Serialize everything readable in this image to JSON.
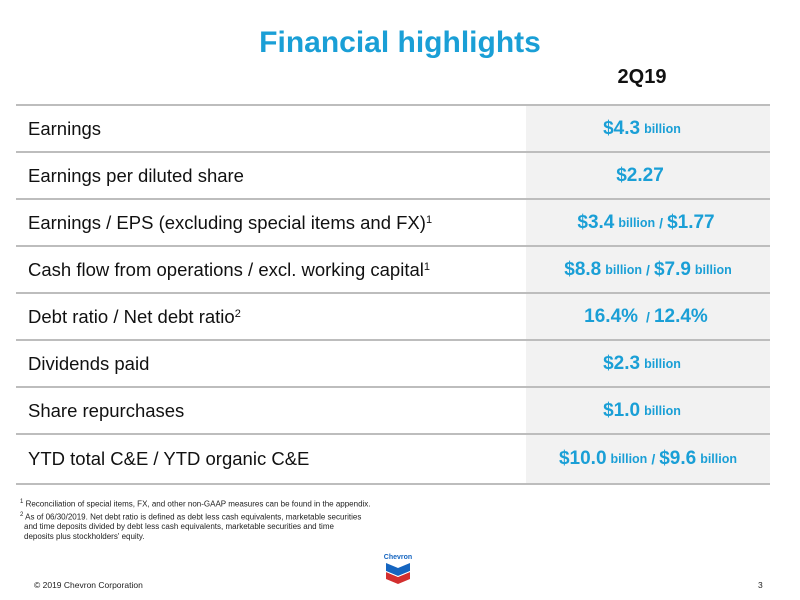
{
  "title": "Financial highlights",
  "period": "2Q19",
  "rows": [
    {
      "label": "Earnings",
      "sup": "",
      "v1": "$4.3",
      "u1": "billion",
      "sep": "",
      "v2": "",
      "u2": ""
    },
    {
      "label": "Earnings per diluted share",
      "sup": "",
      "v1": "$2.27",
      "u1": "",
      "sep": "",
      "v2": "",
      "u2": ""
    },
    {
      "label": "Earnings / EPS (excluding special items and FX)",
      "sup": "1",
      "v1": "$3.4",
      "u1": "billion",
      "sep": "/",
      "v2": "$1.77",
      "u2": ""
    },
    {
      "label": "Cash flow from operations / excl. working capital",
      "sup": "1",
      "v1": "$8.8",
      "u1": "billion",
      "sep": "/",
      "v2": "$7.9",
      "u2": "billion"
    },
    {
      "label": "Debt ratio / Net debt ratio",
      "sup": "2",
      "v1": "16.4%",
      "u1": "",
      "sep": "/",
      "v2": "12.4%",
      "u2": ""
    },
    {
      "label": "Dividends paid",
      "sup": "",
      "v1": "$2.3",
      "u1": "billion",
      "sep": "",
      "v2": "",
      "u2": ""
    },
    {
      "label": "Share repurchases",
      "sup": "",
      "v1": "$1.0",
      "u1": "billion",
      "sep": "",
      "v2": "",
      "u2": ""
    },
    {
      "label": "YTD total C&E / YTD organic C&E",
      "sup": "",
      "v1": "$10.0",
      "u1": "billion",
      "sep": "/",
      "v2": "$9.6",
      "u2": "billion"
    }
  ],
  "footnotes": {
    "fn1_mark": "1",
    "fn1_text": "Reconciliation of special items, FX, and other non-GAAP measures can be found in the appendix.",
    "fn2_mark": "2",
    "fn2_line1": "As of 06/30/2019.  Net debt ratio is defined as debt less cash equivalents, marketable securities",
    "fn2_line2": "and time deposits divided by debt less cash equivalents, marketable securities and time",
    "fn2_line3": "deposits plus stockholders' equity."
  },
  "logo": {
    "text": "Chevron",
    "color_blue": "#1565c0",
    "color_red": "#d32f2f"
  },
  "footer": {
    "copyright": "© 2019 Chevron Corporation",
    "page": "3"
  },
  "colors": {
    "accent": "#1a9fd6",
    "cell_bg": "#f2f2f2",
    "rule": "#bdbdbd"
  }
}
